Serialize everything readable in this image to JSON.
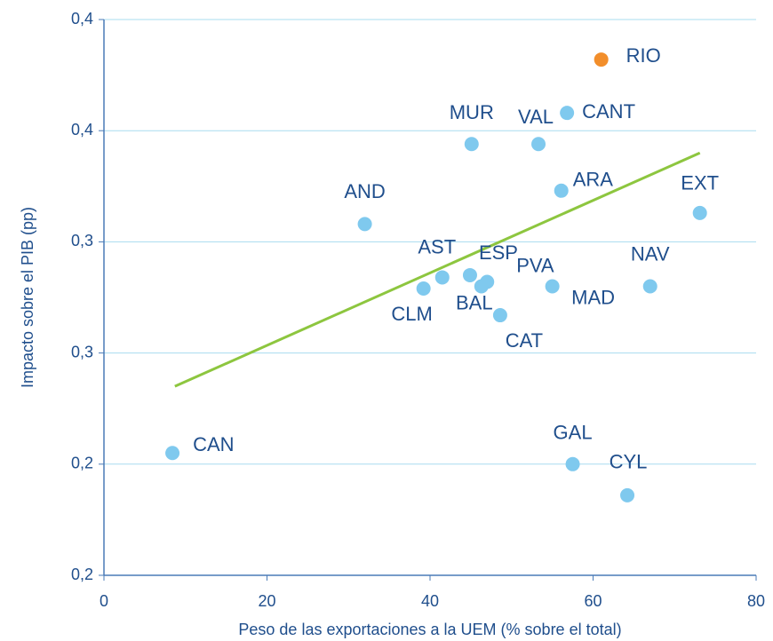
{
  "chart_data": {
    "type": "scatter",
    "xlabel": "Peso de las exportaciones a la UEM (% sobre el total)",
    "ylabel": "Impacto sobre el PIB (pp)",
    "xlim": [
      0,
      80
    ],
    "xticks": [
      0,
      20,
      40,
      60,
      80
    ],
    "ylim": [
      0.15,
      0.4
    ],
    "yticks": [
      {
        "value": 0.15,
        "label": "0,2"
      },
      {
        "value": 0.2,
        "label": "0,2"
      },
      {
        "value": 0.25,
        "label": "0,3"
      },
      {
        "value": 0.3,
        "label": "0,3"
      },
      {
        "value": 0.35,
        "label": "0,4"
      },
      {
        "value": 0.4,
        "label": "0,4"
      }
    ],
    "grid": true,
    "series": [
      {
        "labels": [
          "RIO",
          "CANT",
          "MUR",
          "VAL",
          "ARA",
          "EXT",
          "AND",
          "AST",
          "ESP",
          "PVA",
          "BAL",
          "CLM",
          "MAD",
          "NAV",
          "CAT",
          "CAN",
          "GAL",
          "CYL"
        ],
        "x": [
          61.0,
          56.8,
          45.1,
          53.3,
          56.1,
          73.1,
          32.0,
          41.5,
          44.9,
          47.0,
          46.3,
          39.2,
          55.0,
          67.0,
          48.6,
          8.4,
          57.5,
          64.2
        ],
        "values": [
          0.382,
          0.358,
          0.344,
          0.344,
          0.323,
          0.313,
          0.308,
          0.284,
          0.285,
          0.282,
          0.28,
          0.279,
          0.28,
          0.28,
          0.267,
          0.205,
          0.2,
          0.186
        ],
        "colors": [
          "#f28e2b",
          "#7fc9ee",
          "#7fc9ee",
          "#7fc9ee",
          "#7fc9ee",
          "#7fc9ee",
          "#7fc9ee",
          "#7fc9ee",
          "#7fc9ee",
          "#7fc9ee",
          "#7fc9ee",
          "#7fc9ee",
          "#7fc9ee",
          "#7fc9ee",
          "#7fc9ee",
          "#7fc9ee",
          "#7fc9ee",
          "#7fc9ee"
        ]
      }
    ],
    "trendline": {
      "x": [
        8.7,
        73.1
      ],
      "y": [
        0.235,
        0.34
      ],
      "color": "#8dc63f"
    }
  }
}
